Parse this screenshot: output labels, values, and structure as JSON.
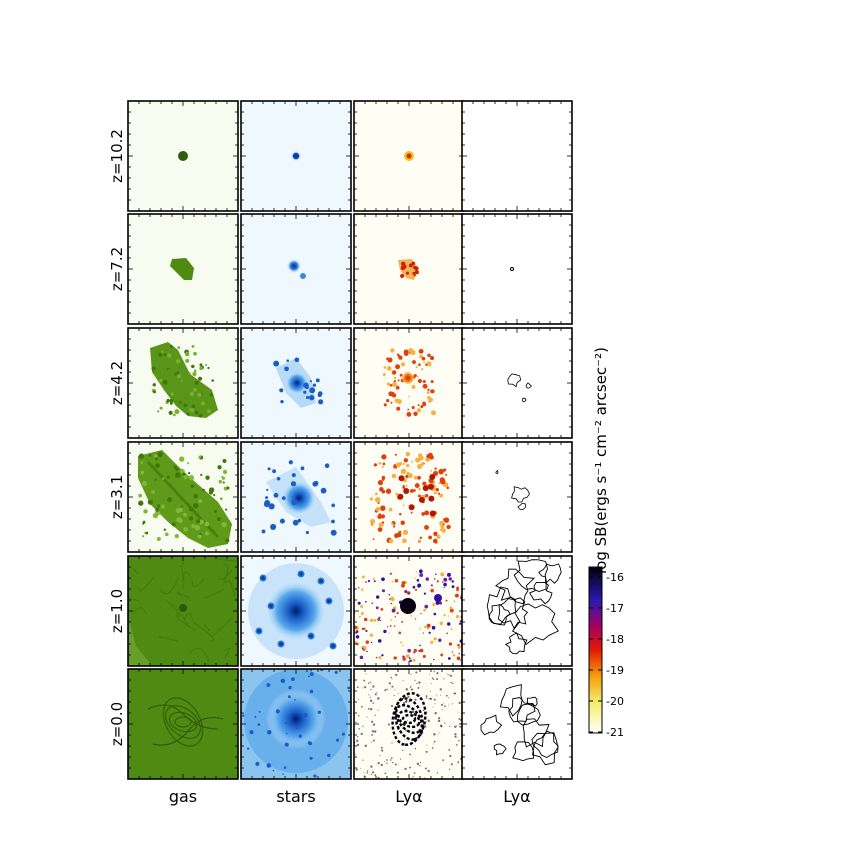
{
  "figure": {
    "row_labels": [
      "z=10.2",
      "z=7.2",
      "z=4.2",
      "z=3.1",
      "z=1.0",
      "z=0.0"
    ],
    "column_labels": [
      "gas",
      "stars",
      "Lyα",
      "Lyα"
    ],
    "panel_types": [
      "gas",
      "stars",
      "lya",
      "contour"
    ],
    "colorbar": {
      "title": "log SB(ergs s⁻¹ cm⁻²  arcsec⁻²)",
      "ticks": [
        "-16",
        "-17",
        "-18",
        "-19",
        "-20",
        "-21"
      ],
      "range": [
        -21,
        -16
      ],
      "colors": [
        "#ffffff",
        "#f0e020",
        "#f5a000",
        "#e81800",
        "#b00050",
        "#3010a0",
        "#080010"
      ]
    },
    "colors": {
      "gas_background": "#f8fbf0",
      "gas_fill": "#4f8a12",
      "gas_dark": "#2f5e08",
      "stars_background": "#f0f8ff",
      "stars_fill": "#2a8ad8",
      "stars_core": "#0a3a9a",
      "lya_background": "#fffef5",
      "lya_fill": "#e85018",
      "contour_stroke": "#000000"
    }
  }
}
